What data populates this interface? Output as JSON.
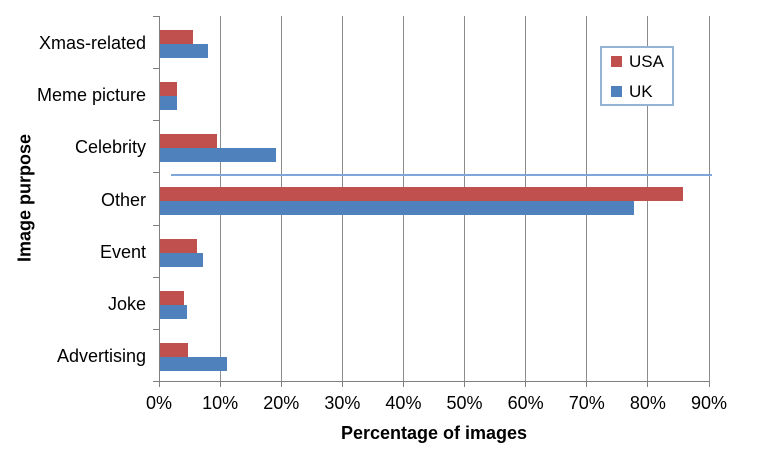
{
  "figure": {
    "background": "#FFFFFF",
    "text_color": "#000000",
    "axis_color": "#7F7F7F",
    "gridline_color": "#8C8C8C"
  },
  "chart_data": {
    "type": "bar",
    "orientation": "horizontal",
    "title": "",
    "categories": [
      "Xmas-related",
      "Meme picture",
      "Celebrity",
      "Other",
      "Event",
      "Joke",
      "Advertising"
    ],
    "series": [
      {
        "name": "USA",
        "color": "#C0504D",
        "values": [
          5.4,
          2.7,
          9.3,
          85.5,
          6.0,
          4.0,
          4.6
        ]
      },
      {
        "name": "UK",
        "color": "#4F81BD",
        "values": [
          7.8,
          2.7,
          19.0,
          77.6,
          7.0,
          4.4,
          11.0
        ]
      }
    ],
    "xlabel": "Percentage of images",
    "ylabel": "Image purpose",
    "xlim": [
      0,
      90
    ],
    "xtick_labels": [
      "0%",
      "10%",
      "20%",
      "30%",
      "40%",
      "50%",
      "60%",
      "70%",
      "80%",
      "90%"
    ],
    "grid": true,
    "legend": {
      "position": "top-right",
      "entries": [
        "USA",
        "UK"
      ],
      "border_color": "#95B3D7",
      "background": "#FFFFFF"
    },
    "annotations": [
      {
        "type": "line",
        "description": "thin stray horizontal blue line at boundary between Celebrity and Other rows",
        "color": "#7EA6D8",
        "x_start": 2.0,
        "x_end": 90.5,
        "boundary_index": 3
      }
    ]
  }
}
